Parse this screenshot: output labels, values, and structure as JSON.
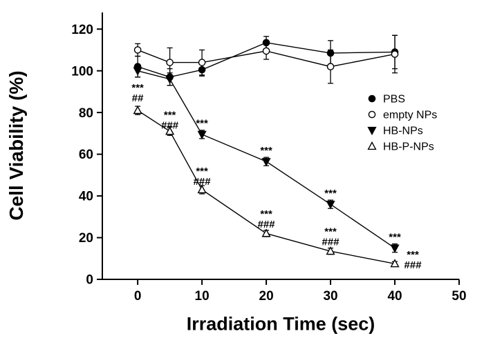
{
  "figure": {
    "background": "#ffffff",
    "line_color": "#000000"
  },
  "chart_data": {
    "type": "line",
    "title": "",
    "xlabel": "Irradiation Time (sec)",
    "ylabel": "Cell Viability (%)",
    "xlim": [
      -5.5,
      50
    ],
    "ylim": [
      0,
      128
    ],
    "x_ticks": [
      0,
      10,
      20,
      30,
      40,
      50
    ],
    "y_ticks": [
      0,
      20,
      40,
      60,
      80,
      100,
      120
    ],
    "grid": false,
    "legend_position": "middle-right",
    "x": [
      0,
      5,
      10,
      20,
      30,
      40
    ],
    "series": [
      {
        "name": "PBS",
        "marker": "circle",
        "fill": "filled",
        "values": [
          102,
          97,
          100.5,
          113.5,
          108.5,
          109
        ],
        "errors": [
          5,
          4,
          3,
          3,
          6,
          8
        ]
      },
      {
        "name": "empty NPs",
        "marker": "circle",
        "fill": "open",
        "values": [
          110,
          104,
          104,
          109.5,
          102,
          108
        ],
        "errors": [
          3,
          7,
          6,
          4,
          8,
          9
        ]
      },
      {
        "name": "HB-NPs",
        "marker": "triangle-down",
        "fill": "filled",
        "values": [
          100,
          96,
          69.5,
          56.5,
          36,
          15
        ],
        "errors": [
          3,
          3,
          2,
          2,
          2,
          2
        ]
      },
      {
        "name": "HB-P-NPs",
        "marker": "triangle-up",
        "fill": "open",
        "values": [
          81,
          71,
          43,
          22,
          13.5,
          7.5
        ],
        "errors": [
          2,
          2,
          2,
          1.5,
          1.5,
          1
        ]
      }
    ],
    "annotations": [
      {
        "x": 0,
        "y": 92,
        "lines": [
          "***",
          "##"
        ]
      },
      {
        "x": 5,
        "y": 79,
        "lines": [
          "***",
          "###"
        ]
      },
      {
        "x": 10,
        "y": 75,
        "lines": [
          "***"
        ]
      },
      {
        "x": 10,
        "y": 52,
        "lines": [
          "***",
          "###"
        ]
      },
      {
        "x": 20,
        "y": 62,
        "lines": [
          "***"
        ]
      },
      {
        "x": 20,
        "y": 31.5,
        "lines": [
          "***",
          "###"
        ]
      },
      {
        "x": 30,
        "y": 41.5,
        "lines": [
          "***"
        ]
      },
      {
        "x": 30,
        "y": 23,
        "lines": [
          "***",
          "###"
        ]
      },
      {
        "x": 40,
        "y": 20.5,
        "lines": [
          "***"
        ]
      },
      {
        "x": 42.8,
        "y": 12,
        "lines": [
          "***",
          "###"
        ]
      }
    ]
  }
}
